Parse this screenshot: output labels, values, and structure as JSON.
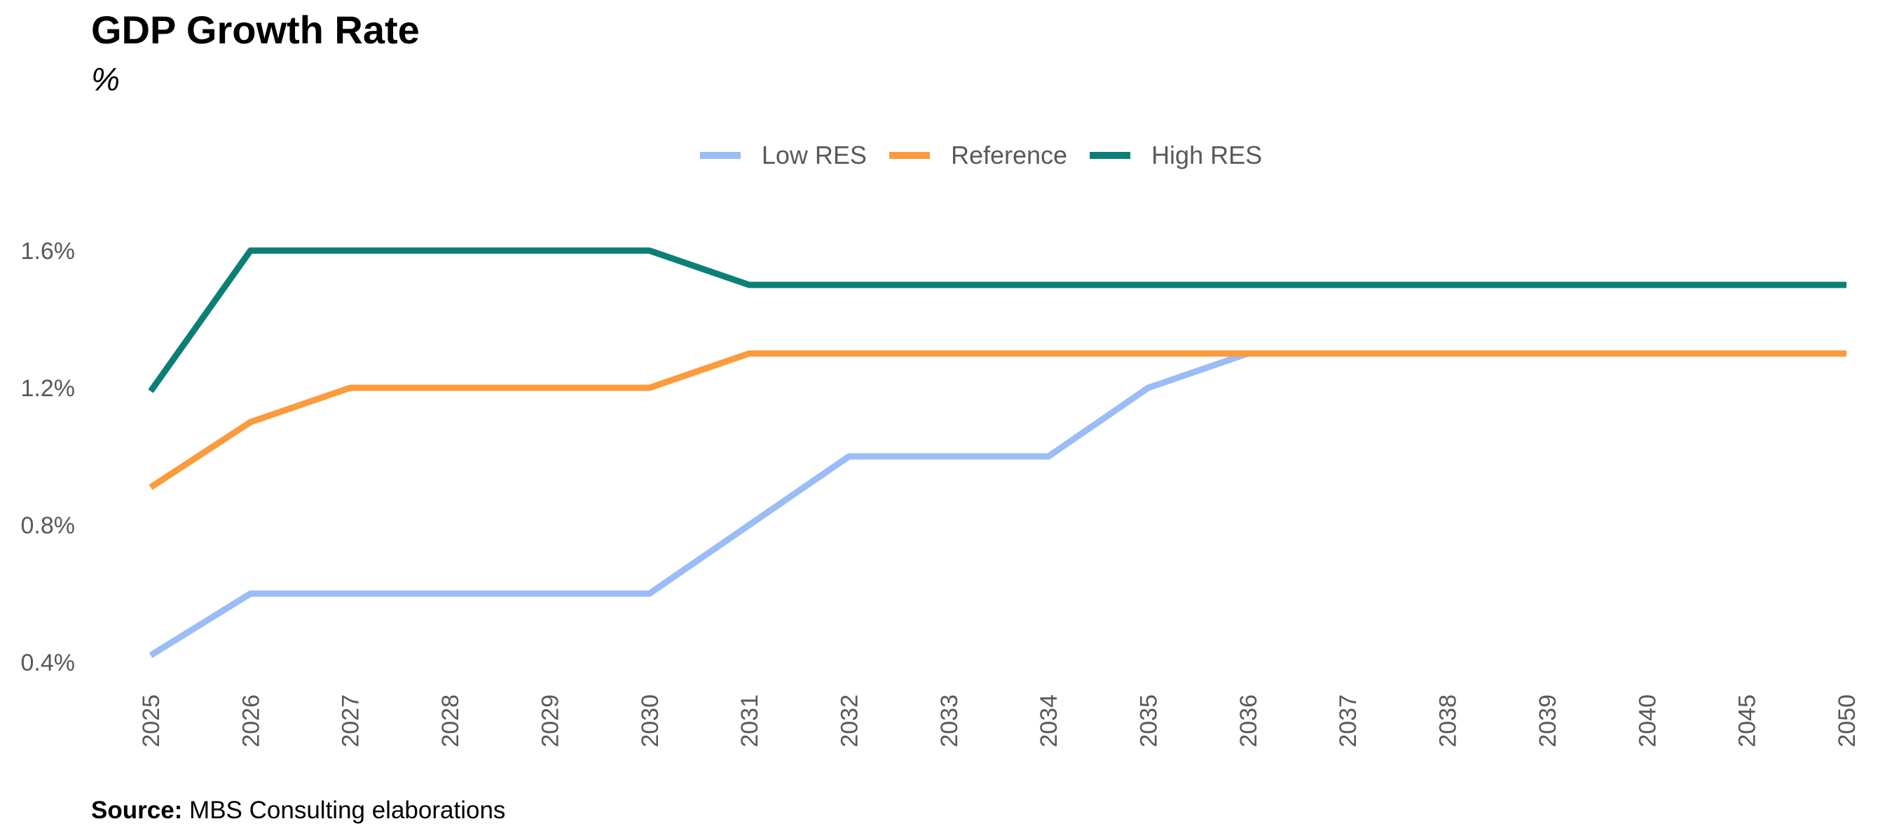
{
  "header": {
    "title": "GDP Growth Rate",
    "subtitle": "%"
  },
  "footer": {
    "source_label": "Source:",
    "source_text": "MBS Consulting elaborations"
  },
  "colors": {
    "low": "#9ABCF7",
    "reference": "#FB9B3B",
    "high": "#0B7F75",
    "axis_text": "#595959"
  },
  "chart_data": {
    "type": "line",
    "title": "GDP Growth Rate",
    "subtitle": "%",
    "categories": [
      "2025",
      "2026",
      "2027",
      "2028",
      "2029",
      "2030",
      "2031",
      "2032",
      "2033",
      "2034",
      "2035",
      "2036",
      "2037",
      "2038",
      "2039",
      "2040",
      "2045",
      "2050"
    ],
    "series": [
      {
        "name": "Low RES",
        "color": "#9ABCF7",
        "values": [
          0.42,
          0.6,
          0.6,
          0.6,
          0.6,
          0.6,
          0.8,
          1.0,
          1.0,
          1.0,
          1.2,
          1.3,
          1.3,
          1.3,
          1.3,
          1.3,
          1.3,
          1.3
        ]
      },
      {
        "name": "Reference",
        "color": "#FB9B3B",
        "values": [
          0.91,
          1.1,
          1.2,
          1.2,
          1.2,
          1.2,
          1.3,
          1.3,
          1.3,
          1.3,
          1.3,
          1.3,
          1.3,
          1.3,
          1.3,
          1.3,
          1.3,
          1.3
        ]
      },
      {
        "name": "High RES",
        "color": "#0B7F75",
        "values": [
          1.19,
          1.6,
          1.6,
          1.6,
          1.6,
          1.6,
          1.5,
          1.5,
          1.5,
          1.5,
          1.5,
          1.5,
          1.5,
          1.5,
          1.5,
          1.5,
          1.5,
          1.5
        ]
      }
    ],
    "y_ticks": [
      0.4,
      0.8,
      1.2,
      1.6
    ],
    "y_tick_labels": [
      "0.4%",
      "0.8%",
      "1.2%",
      "1.6%"
    ],
    "ylim": [
      0.4,
      1.6
    ],
    "xlabel": "",
    "ylabel": "",
    "grid": false,
    "legend": "top-center"
  }
}
